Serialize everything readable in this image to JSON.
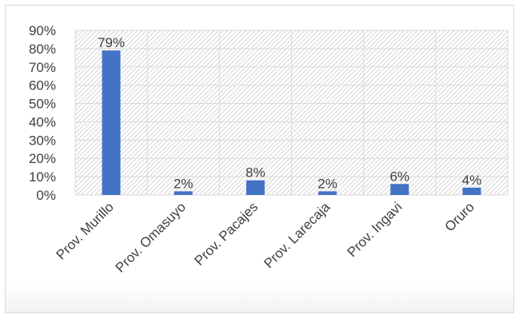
{
  "chart_data": {
    "type": "bar",
    "categories": [
      "Prov. Murillo",
      "Prov. Omasuyo",
      "Prov. Pacajes",
      "Prov. Larecaja",
      "Prov. Ingavi",
      "Oruro"
    ],
    "values": [
      0.79,
      0.02,
      0.08,
      0.02,
      0.06,
      0.04
    ],
    "data_labels": [
      "79%",
      "2%",
      "8%",
      "2%",
      "6%",
      "4%"
    ],
    "y_ticks": [
      "0%",
      "10%",
      "20%",
      "30%",
      "40%",
      "50%",
      "60%",
      "70%",
      "80%",
      "90%"
    ],
    "ylim": [
      0,
      0.9
    ],
    "grid": true,
    "legend": "none",
    "bar_color": "#4472c4",
    "title": "",
    "xlabel": "",
    "ylabel": ""
  }
}
